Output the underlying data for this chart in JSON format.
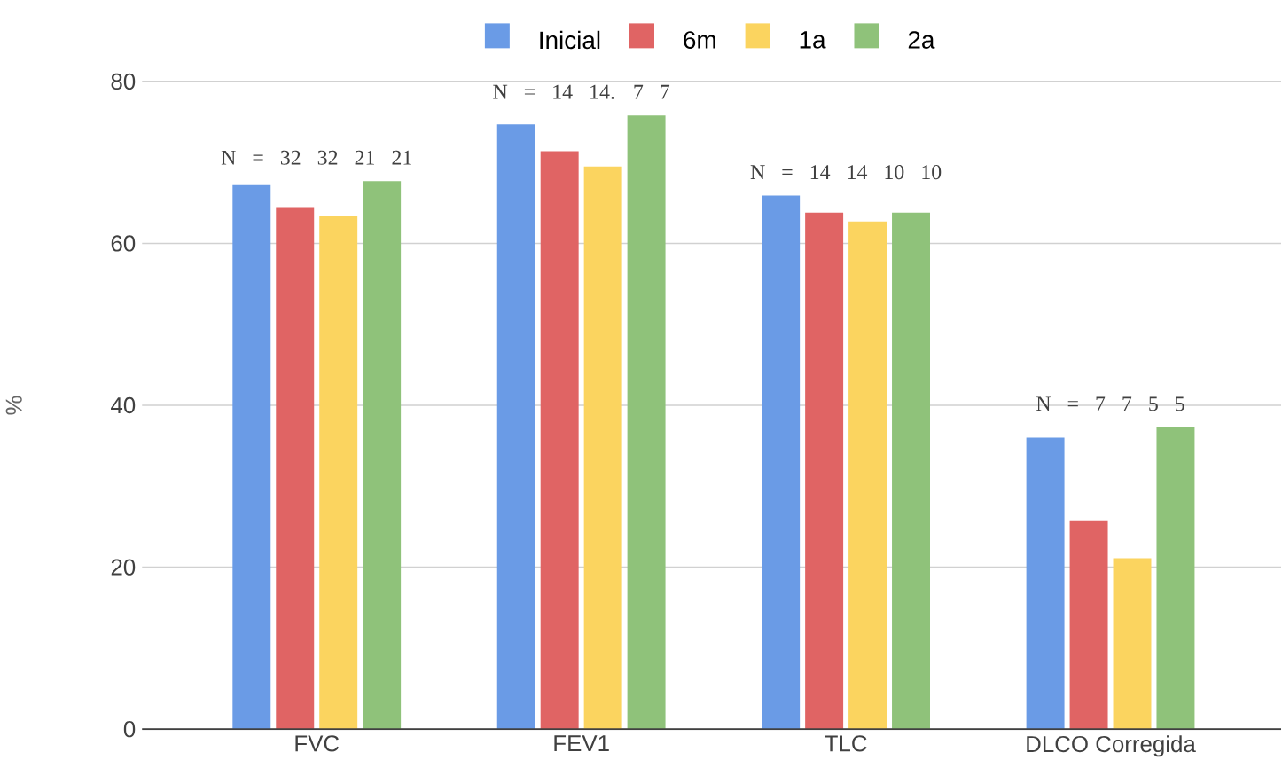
{
  "chart_data": {
    "type": "bar",
    "ylabel": "%",
    "categories": [
      "FVC",
      "FEV1",
      "TLC",
      "DLCO Corregida"
    ],
    "series": [
      {
        "name": "Inicial",
        "color": "#6a9be6",
        "values": [
          67.2,
          74.7,
          65.9,
          36.0
        ]
      },
      {
        "name": "6m",
        "color": "#e06464",
        "values": [
          64.5,
          71.4,
          63.8,
          25.8
        ]
      },
      {
        "name": "1a",
        "color": "#fbd45f",
        "values": [
          63.4,
          69.5,
          62.7,
          21.1
        ]
      },
      {
        "name": "2a",
        "color": "#8fc27a",
        "values": [
          67.7,
          75.8,
          63.8,
          37.3
        ]
      }
    ],
    "ylim": [
      0,
      80
    ],
    "yticks": [
      0,
      20,
      40,
      60,
      80
    ],
    "grid": "y",
    "legend": "top",
    "annotations": [
      "N = 32 32 21 21",
      "N = 14 14. 7 7",
      "N = 14 14 10 10",
      "N = 7 7 5 5"
    ]
  }
}
